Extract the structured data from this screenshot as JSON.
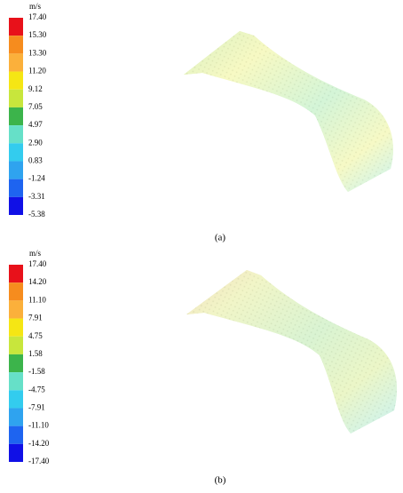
{
  "panels": [
    {
      "unit": "m/s",
      "levels": [
        "17.40",
        "15.30",
        "13.30",
        "11.20",
        "9.12",
        "7.05",
        "4.97",
        "2.90",
        "0.83",
        "-1.24",
        "-3.31",
        "-5.38"
      ],
      "caption": "(a)"
    },
    {
      "unit": "m/s",
      "levels": [
        "17.40",
        "14.20",
        "11.10",
        "7.91",
        "4.75",
        "1.58",
        "-1.58",
        "-4.75",
        "-7.91",
        "-11.10",
        "-14.20",
        "-17.40"
      ],
      "caption": "(b)"
    }
  ]
}
